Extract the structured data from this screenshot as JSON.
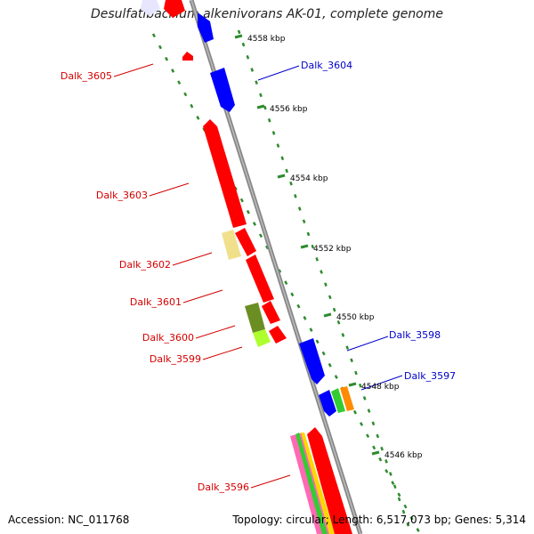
{
  "title": "Desulfatibacillum alkenivorans AK-01, complete genome",
  "accession": "Accession: NC_011768",
  "summary": "Topology: circular; Length: 6,517,073 bp; Genes: 5,314",
  "kbp_ticks": [
    "4558 kbp",
    "4556 kbp",
    "4554 kbp",
    "4552 kbp",
    "4550 kbp",
    "4548 kbp",
    "4546 kbp"
  ],
  "genes_reverse": [
    "Dalk_3605",
    "Dalk_3603",
    "Dalk_3602",
    "Dalk_3601",
    "Dalk_3600",
    "Dalk_3599",
    "Dalk_3596"
  ],
  "genes_forward": [
    "Dalk_3604",
    "Dalk_3598",
    "Dalk_3597"
  ],
  "colors": {
    "reverse_label": "#d40000",
    "forward_label": "#0000c8",
    "gene_red": "#ff0000",
    "gene_blue": "#0000ff",
    "backbone": "#808080",
    "tick": "#2e8b2e"
  }
}
